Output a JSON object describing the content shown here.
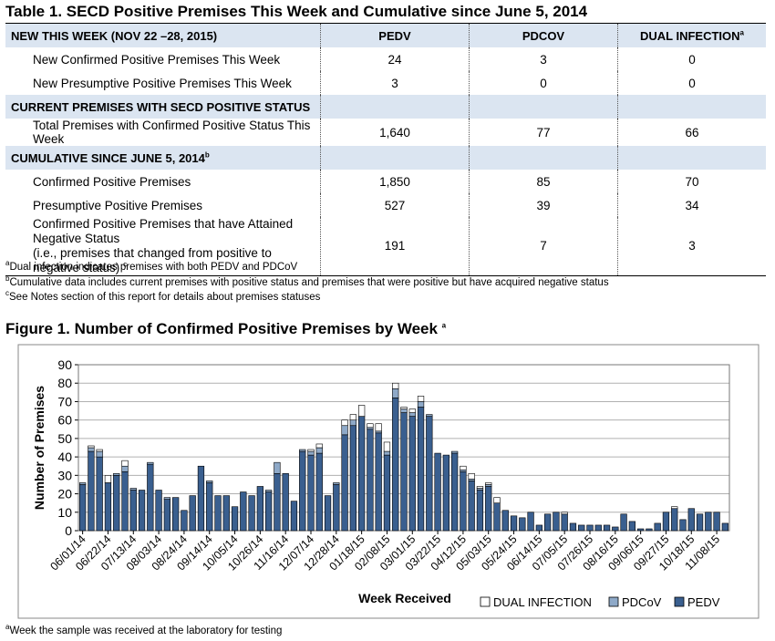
{
  "table": {
    "title": "Table 1. SECD Positive Premises This Week and Cumulative since June 5, 2014",
    "col_pedv": "PEDV",
    "col_pdcov": "PDCOV",
    "col_dual": "DUAL INFECTION",
    "col_dual_sup": "a",
    "sec1": "NEW THIS WEEK  (NOV 22 –28, 2015)",
    "sec2": "CURRENT PREMISES WITH SECD POSITIVE STATUS",
    "sec3": "CUMULATIVE SINCE JUNE 5, 2014",
    "sec3_sup": "b",
    "rows": [
      {
        "label": "New Confirmed Positive Premises This Week",
        "pedv": "24",
        "pdcov": "3",
        "dual": "0"
      },
      {
        "label": "New Presumptive Positive Premises This Week",
        "pedv": "3",
        "pdcov": "0",
        "dual": "0"
      },
      {
        "label": "Total Premises with Confirmed Positive Status This Week",
        "pedv": "1,640",
        "pdcov": "77",
        "dual": "66"
      },
      {
        "label": "Confirmed Positive Premises",
        "pedv": "1,850",
        "pdcov": "85",
        "dual": "70"
      },
      {
        "label": "Presumptive Positive Premises",
        "pedv": "527",
        "pdcov": "39",
        "dual": "34"
      },
      {
        "label": "Confirmed Positive Premises that have Attained Negative Status",
        "label2": "(i.e., premises that changed from positive to negative status)",
        "label2_sup": "c",
        "pedv": "191",
        "pdcov": "7",
        "dual": "3"
      }
    ],
    "footnotes": [
      {
        "sup": "a",
        "text": "Dual infection indicates premises with both PEDV and PDCoV"
      },
      {
        "sup": "b",
        "text": "Cumulative data includes current premises with positive status and premises that were positive but have acquired negative status"
      },
      {
        "sup": "c",
        "text": "See Notes section of this report for details about premises statuses"
      }
    ]
  },
  "figure": {
    "title": "Figure 1.  Number of Confirmed Positive Premises by Week",
    "title_sup": "a",
    "note_sup": "a",
    "note": "Week the sample was received at the laboratory for testing"
  },
  "colors": {
    "pedv": "#3a5f8f",
    "pdcov": "#8ea9c8",
    "dual": "#ffffff",
    "header": "#dbe5f1"
  },
  "chart_data": {
    "type": "bar",
    "stacked": true,
    "xlabel": "Week Received",
    "ylabel": "Number of Premises",
    "ylim": [
      0,
      90
    ],
    "yticks": [
      0,
      10,
      20,
      30,
      40,
      50,
      60,
      70,
      80,
      90
    ],
    "grid": true,
    "legend_position": "bottom-right",
    "tick_labels": [
      "06/01/14",
      "06/22/14",
      "07/13/14",
      "08/03/14",
      "08/24/14",
      "09/14/14",
      "10/05/14",
      "10/26/14",
      "11/16/14",
      "12/07/14",
      "12/28/14",
      "01/18/15",
      "02/08/15",
      "03/01/15",
      "03/22/15",
      "04/12/15",
      "05/03/15",
      "05/24/15",
      "06/14/15",
      "07/05/15",
      "07/26/15",
      "08/16/15",
      "09/06/15",
      "09/27/15",
      "10/18/15",
      "11/08/15"
    ],
    "legend": [
      "DUAL INFECTION",
      "PDCoV",
      "PEDV"
    ],
    "series": [
      {
        "name": "PEDV",
        "values": [
          25,
          43,
          40,
          26,
          30,
          32,
          22,
          22,
          36,
          22,
          17,
          18,
          11,
          19,
          35,
          26,
          19,
          19,
          13,
          21,
          19,
          24,
          21,
          31,
          31,
          16,
          43,
          41,
          42,
          19,
          25,
          52,
          57,
          62,
          55,
          53,
          41,
          72,
          64,
          62,
          67,
          62,
          42,
          41,
          42,
          32,
          27,
          22,
          24,
          15,
          11,
          8,
          7,
          10,
          3,
          9,
          10,
          9,
          4,
          3,
          3,
          3,
          3,
          2,
          9,
          5,
          1,
          1,
          4,
          10,
          12,
          6,
          12,
          9,
          10,
          10,
          4
        ]
      },
      {
        "name": "PDCoV",
        "values": [
          1,
          2,
          3,
          0,
          1,
          3,
          1,
          0,
          1,
          0,
          1,
          0,
          0,
          0,
          0,
          1,
          0,
          0,
          0,
          0,
          0,
          0,
          1,
          6,
          0,
          0,
          1,
          2,
          3,
          0,
          1,
          5,
          3,
          0,
          1,
          1,
          2,
          5,
          2,
          2,
          3,
          1,
          0,
          0,
          1,
          1,
          1,
          1,
          1,
          0,
          0,
          0,
          0,
          0,
          0,
          0,
          0,
          0,
          0,
          0,
          0,
          0,
          0,
          0,
          0,
          0,
          0,
          0,
          0,
          0,
          0,
          0,
          0,
          0,
          0,
          0,
          0
        ]
      },
      {
        "name": "DUAL INFECTION",
        "values": [
          0,
          1,
          1,
          4,
          0,
          3,
          0,
          0,
          0,
          0,
          0,
          0,
          0,
          0,
          0,
          0,
          0,
          0,
          0,
          0,
          0,
          0,
          0,
          0,
          0,
          0,
          0,
          1,
          2,
          0,
          0,
          3,
          3,
          6,
          2,
          4,
          5,
          3,
          1,
          2,
          3,
          0,
          0,
          0,
          0,
          2,
          3,
          1,
          1,
          3,
          0,
          0,
          0,
          0,
          0,
          0,
          0,
          1,
          0,
          0,
          0,
          0,
          0,
          0,
          0,
          0,
          0,
          0,
          0,
          0,
          1,
          0,
          0,
          0,
          0,
          0,
          0
        ]
      }
    ]
  }
}
